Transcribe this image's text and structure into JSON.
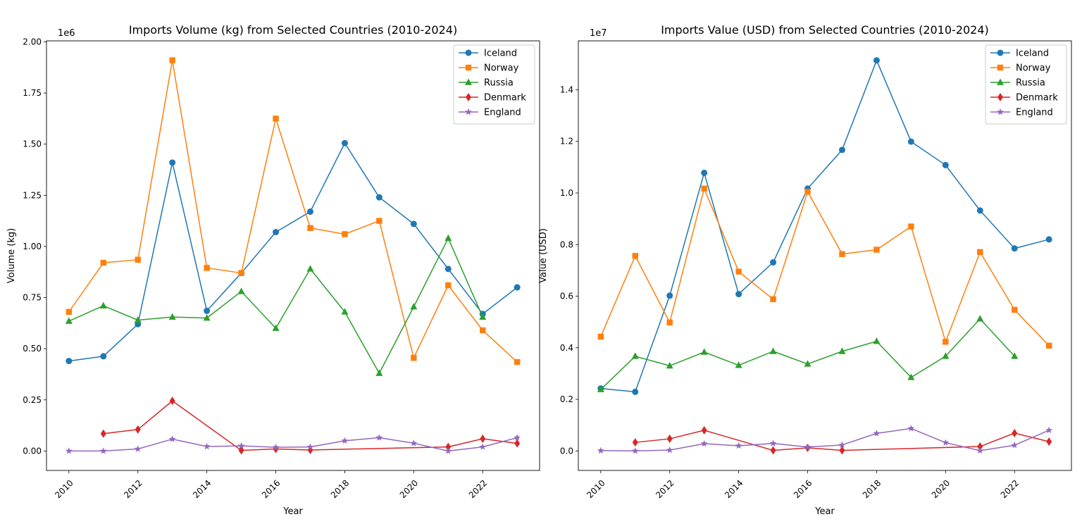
{
  "chart_data": [
    {
      "type": "line",
      "title": "Imports Volume (kg) from Selected Countries (2010-2024)",
      "xlabel": "Year",
      "ylabel": "Volume (kg)",
      "y_scale_label": "1e6",
      "xlim": [
        2009.35,
        2023.65
      ],
      "ylim": [
        -0.095,
        2.005
      ],
      "xticks": [
        2010,
        2012,
        2014,
        2016,
        2018,
        2020,
        2022
      ],
      "yticks": [
        0.0,
        0.25,
        0.5,
        0.75,
        1.0,
        1.25,
        1.5,
        1.75,
        2.0
      ],
      "ytick_labels": [
        "0.00",
        "0.25",
        "0.50",
        "0.75",
        "1.00",
        "1.25",
        "1.50",
        "1.75",
        "2.00"
      ],
      "legend_position": "top-right",
      "series": [
        {
          "name": "Iceland",
          "color": "#1f77b4",
          "marker": "circle",
          "points": [
            [
              2010,
              0.44
            ],
            [
              2011,
              0.463
            ],
            [
              2012,
              0.62
            ],
            [
              2013,
              1.41
            ],
            [
              2014,
              0.685
            ],
            [
              2015,
              0.87
            ],
            [
              2016,
              1.07
            ],
            [
              2017,
              1.17
            ],
            [
              2018,
              1.505
            ],
            [
              2019,
              1.24
            ],
            [
              2020,
              1.11
            ],
            [
              2021,
              0.89
            ],
            [
              2022,
              0.67
            ],
            [
              2023,
              0.8
            ]
          ]
        },
        {
          "name": "Norway",
          "color": "#ff7f0e",
          "marker": "square",
          "points": [
            [
              2010,
              0.68
            ],
            [
              2011,
              0.92
            ],
            [
              2012,
              0.935
            ],
            [
              2013,
              1.91
            ],
            [
              2014,
              0.895
            ],
            [
              2015,
              0.87
            ],
            [
              2016,
              1.625
            ],
            [
              2017,
              1.09
            ],
            [
              2018,
              1.06
            ],
            [
              2019,
              1.125
            ],
            [
              2020,
              0.455
            ],
            [
              2021,
              0.81
            ],
            [
              2022,
              0.59
            ],
            [
              2023,
              0.435
            ]
          ]
        },
        {
          "name": "Russia",
          "color": "#2ca02c",
          "marker": "triangle",
          "points": [
            [
              2010,
              0.635
            ],
            [
              2011,
              0.71
            ],
            [
              2012,
              0.64
            ],
            [
              2013,
              0.655
            ],
            [
              2014,
              0.65
            ],
            [
              2015,
              0.78
            ],
            [
              2016,
              0.6
            ],
            [
              2017,
              0.89
            ],
            [
              2018,
              0.68
            ],
            [
              2019,
              0.38
            ],
            [
              2020,
              0.705
            ],
            [
              2021,
              1.04
            ],
            [
              2022,
              0.655
            ]
          ]
        },
        {
          "name": "Denmark",
          "color": "#d62728",
          "marker": "diamond",
          "points": [
            [
              2011,
              0.085
            ],
            [
              2012,
              0.105
            ],
            [
              2013,
              0.245
            ],
            [
              2015,
              0.003
            ],
            [
              2016,
              0.01
            ],
            [
              2017,
              0.005
            ],
            [
              2021,
              0.02
            ],
            [
              2022,
              0.06
            ],
            [
              2023,
              0.037
            ]
          ]
        },
        {
          "name": "England",
          "color": "#9467bd",
          "marker": "star",
          "points": [
            [
              2010,
              0.0
            ],
            [
              2011,
              0.0
            ],
            [
              2012,
              0.01
            ],
            [
              2013,
              0.058
            ],
            [
              2014,
              0.022
            ],
            [
              2015,
              0.025
            ],
            [
              2016,
              0.018
            ],
            [
              2017,
              0.02
            ],
            [
              2018,
              0.05
            ],
            [
              2019,
              0.065
            ],
            [
              2020,
              0.038
            ],
            [
              2021,
              0.0
            ],
            [
              2022,
              0.02
            ],
            [
              2023,
              0.065
            ]
          ]
        }
      ]
    },
    {
      "type": "line",
      "title": "Imports Value (USD) from Selected Countries (2010-2024)",
      "xlabel": "Year",
      "ylabel": "Value (USD)",
      "y_scale_label": "1e7",
      "xlim": [
        2009.35,
        2023.65
      ],
      "ylim": [
        -0.0757,
        1.5897
      ],
      "xticks": [
        2010,
        2012,
        2014,
        2016,
        2018,
        2020,
        2022
      ],
      "yticks": [
        0.0,
        0.2,
        0.4,
        0.6,
        0.8,
        1.0,
        1.2,
        1.4
      ],
      "ytick_labels": [
        "0.0",
        "0.2",
        "0.4",
        "0.6",
        "0.8",
        "1.0",
        "1.2",
        "1.4"
      ],
      "legend_position": "top-right",
      "series": [
        {
          "name": "Iceland",
          "color": "#1f77b4",
          "marker": "circle",
          "points": [
            [
              2010,
              0.242
            ],
            [
              2011,
              0.229
            ],
            [
              2012,
              0.602
            ],
            [
              2013,
              1.078
            ],
            [
              2014,
              0.608
            ],
            [
              2015,
              0.731
            ],
            [
              2016,
              1.017
            ],
            [
              2017,
              1.167
            ],
            [
              2018,
              1.514
            ],
            [
              2019,
              1.199
            ],
            [
              2020,
              1.108
            ],
            [
              2021,
              0.932
            ],
            [
              2022,
              0.785
            ],
            [
              2023,
              0.82
            ]
          ]
        },
        {
          "name": "Norway",
          "color": "#ff7f0e",
          "marker": "square",
          "points": [
            [
              2010,
              0.443
            ],
            [
              2011,
              0.756
            ],
            [
              2012,
              0.498
            ],
            [
              2013,
              1.017
            ],
            [
              2014,
              0.695
            ],
            [
              2015,
              0.588
            ],
            [
              2016,
              1.005
            ],
            [
              2017,
              0.763
            ],
            [
              2018,
              0.78
            ],
            [
              2019,
              0.87
            ],
            [
              2020,
              0.423
            ],
            [
              2021,
              0.771
            ],
            [
              2022,
              0.547
            ],
            [
              2023,
              0.408
            ]
          ]
        },
        {
          "name": "Russia",
          "color": "#2ca02c",
          "marker": "triangle",
          "points": [
            [
              2010,
              0.238
            ],
            [
              2011,
              0.367
            ],
            [
              2012,
              0.33
            ],
            [
              2013,
              0.383
            ],
            [
              2014,
              0.332
            ],
            [
              2015,
              0.386
            ],
            [
              2016,
              0.337
            ],
            [
              2017,
              0.386
            ],
            [
              2018,
              0.425
            ],
            [
              2019,
              0.285
            ],
            [
              2020,
              0.367
            ],
            [
              2021,
              0.512
            ],
            [
              2022,
              0.367
            ]
          ]
        },
        {
          "name": "Denmark",
          "color": "#d62728",
          "marker": "diamond",
          "points": [
            [
              2011,
              0.033
            ],
            [
              2012,
              0.047
            ],
            [
              2013,
              0.08
            ],
            [
              2015,
              0.002
            ],
            [
              2016,
              0.012
            ],
            [
              2017,
              0.002
            ],
            [
              2021,
              0.017
            ],
            [
              2022,
              0.069
            ],
            [
              2023,
              0.036
            ]
          ]
        },
        {
          "name": "England",
          "color": "#9467bd",
          "marker": "star",
          "points": [
            [
              2010,
              0.001
            ],
            [
              2011,
              0.0
            ],
            [
              2012,
              0.003
            ],
            [
              2013,
              0.028
            ],
            [
              2014,
              0.02
            ],
            [
              2015,
              0.029
            ],
            [
              2016,
              0.015
            ],
            [
              2017,
              0.023
            ],
            [
              2018,
              0.068
            ],
            [
              2019,
              0.087
            ],
            [
              2020,
              0.032
            ],
            [
              2021,
              0.001
            ],
            [
              2022,
              0.022
            ],
            [
              2023,
              0.08
            ]
          ]
        }
      ]
    }
  ]
}
